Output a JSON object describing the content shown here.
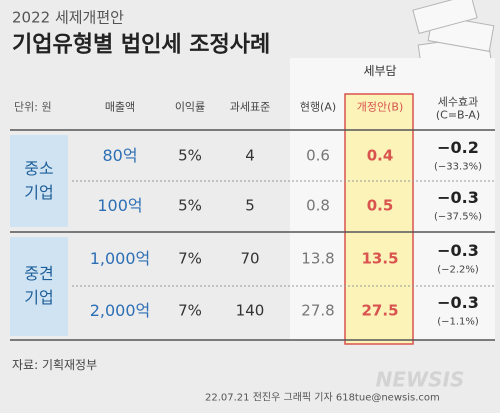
{
  "header": {
    "subtitle": "2022 세제개편안",
    "title": "기업유형별 법인세 조정사례"
  },
  "unit": "단위: 원",
  "table": {
    "group_header": "세부담",
    "columns": [
      "매출액",
      "이익률",
      "과세표준",
      "현행(A)",
      "개정안(B)",
      [
        "세수효과",
        "(C=B-A)"
      ]
    ],
    "groups": [
      {
        "label": [
          "중소",
          "기업"
        ],
        "rows": [
          {
            "sales": "80억",
            "margin": "5%",
            "tax_base": "4",
            "current": "0.6",
            "revised": "0.4",
            "effect": "−0.2",
            "effect_pct": "(−33.3%)"
          },
          {
            "sales": "100억",
            "margin": "5%",
            "tax_base": "5",
            "current": "0.8",
            "revised": "0.5",
            "effect": "−0.3",
            "effect_pct": "(−37.5%)"
          }
        ]
      },
      {
        "label": [
          "중견",
          "기업"
        ],
        "rows": [
          {
            "sales": "1,000억",
            "margin": "7%",
            "tax_base": "70",
            "current": "13.8",
            "revised": "13.5",
            "effect": "−0.3",
            "effect_pct": "(−2.2%)"
          },
          {
            "sales": "2,000억",
            "margin": "7%",
            "tax_base": "140",
            "current": "27.8",
            "revised": "27.5",
            "effect": "−0.3",
            "effect_pct": "(−1.1%)"
          }
        ]
      }
    ]
  },
  "source": "자료: 기획재정부",
  "credit": "22.07.21 전진우 그래픽 기자 618tue@newsis.com",
  "watermark": "NEWSIS"
}
